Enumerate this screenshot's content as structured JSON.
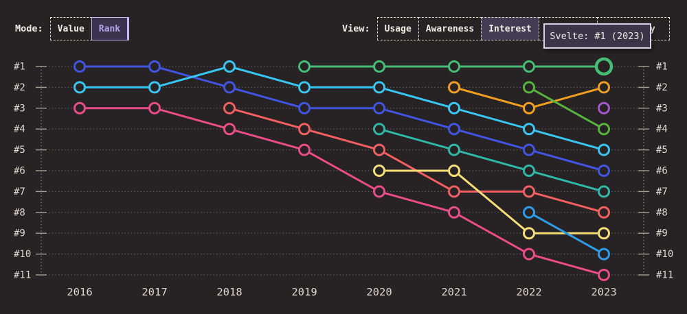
{
  "colors": {
    "background": "#272324",
    "text_primary": "#f0ebe2",
    "text_axis": "#ddd7cc",
    "gridline": "rgba(230,224,213,0.30)",
    "axis_dotted": "rgba(230,224,213,0.55)",
    "tick": "#a59e93",
    "active_mode_bg": "#3a3451",
    "active_mode_text": "#b5a3e6",
    "active_mode_border": "#c8b8f0",
    "active_view_bg": "#433d54",
    "button_border_dashed": "#dcd6cc",
    "tooltip_bg": "#3b3547",
    "tooltip_border": "#d8d2e6"
  },
  "controls": {
    "mode": {
      "label": "Mode:",
      "options": [
        {
          "label": "Value",
          "active": false
        },
        {
          "label": "Rank",
          "active": true
        }
      ]
    },
    "view": {
      "label": "View:",
      "options": [
        {
          "label": "Usage",
          "active": false
        },
        {
          "label": "Awareness",
          "active": false
        },
        {
          "label": "Interest",
          "active": true
        },
        {
          "label": "",
          "active": false,
          "obscured": true
        },
        {
          "label": "ty",
          "active": false,
          "obscured": true
        }
      ]
    }
  },
  "tooltip": {
    "text": "Svelte: #1 (2023)"
  },
  "chart_data": {
    "type": "line",
    "subtype": "bump_chart_rank",
    "title": "",
    "xlabel": "",
    "ylabel": "",
    "x_labels": [
      "2016",
      "2017",
      "2018",
      "2019",
      "2020",
      "2021",
      "2022",
      "2023"
    ],
    "rank_labels": [
      "#1",
      "#2",
      "#3",
      "#4",
      "#5",
      "#6",
      "#7",
      "#8",
      "#9",
      "#10",
      "#11"
    ],
    "y_axis": "rank, #1 at top to #11 at bottom, labels on both sides",
    "grid": "dotted horizontal line per rank, dotted vertical axis on both sides",
    "legend_position": "none",
    "series": [
      {
        "name": "royal-blue",
        "color": "#4353e2",
        "ranks": [
          1,
          1,
          2,
          3,
          3,
          4,
          5,
          6
        ]
      },
      {
        "name": "cyan",
        "color": "#38c6f0",
        "ranks": [
          2,
          2,
          1,
          2,
          2,
          3,
          4,
          5
        ]
      },
      {
        "name": "pink",
        "color": "#ea4c87",
        "ranks": [
          3,
          3,
          4,
          5,
          7,
          8,
          10,
          11
        ]
      },
      {
        "name": "salmon",
        "color": "#f25f62",
        "ranks": [
          null,
          null,
          3,
          4,
          5,
          7,
          7,
          8
        ]
      },
      {
        "name": "green-svelte",
        "color": "#45bd76",
        "ranks": [
          null,
          null,
          null,
          1,
          1,
          1,
          1,
          1
        ]
      },
      {
        "name": "teal",
        "color": "#2fb8a6",
        "ranks": [
          null,
          null,
          null,
          null,
          4,
          5,
          6,
          7
        ]
      },
      {
        "name": "yellow",
        "color": "#f3de78",
        "ranks": [
          null,
          null,
          null,
          null,
          6,
          6,
          9,
          9
        ]
      },
      {
        "name": "orange",
        "color": "#f09e1f",
        "ranks": [
          null,
          null,
          null,
          null,
          null,
          2,
          3,
          2
        ]
      },
      {
        "name": "lime",
        "color": "#58b33c",
        "ranks": [
          null,
          null,
          null,
          null,
          null,
          null,
          2,
          4
        ]
      },
      {
        "name": "sky-blue",
        "color": "#2f9ce8",
        "ranks": [
          null,
          null,
          null,
          null,
          null,
          null,
          8,
          10
        ]
      },
      {
        "name": "purple",
        "color": "#a158c8",
        "ranks": [
          null,
          null,
          null,
          null,
          null,
          null,
          null,
          3
        ]
      }
    ],
    "highlight": {
      "series": "green-svelte",
      "year_label": "2023",
      "rank": 1,
      "tooltip": "Svelte: #1 (2023)"
    }
  }
}
